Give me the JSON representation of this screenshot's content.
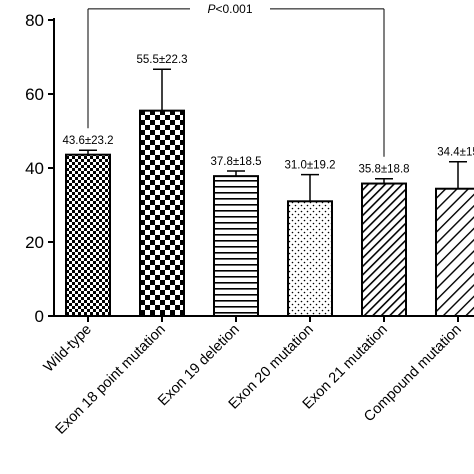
{
  "chart_data": {
    "type": "bar",
    "categories": [
      "Wild-type",
      "Exon 18 point mutation",
      "Exon 19 deletion",
      "Exon 20 mutation",
      "Exon 21 mutation",
      "Compound mutation"
    ],
    "values": [
      43.6,
      55.5,
      37.8,
      31.0,
      35.8,
      34.4
    ],
    "errors": [
      1.2,
      11.2,
      1.4,
      7.2,
      1.3,
      7.3
    ],
    "value_labels": [
      "43.6±23.2",
      "55.5±22.3",
      "37.8±18.5",
      "31.0±19.2",
      "35.8±18.8",
      "34.4±15"
    ],
    "patterns": [
      "checker-small",
      "checker-large",
      "horizontal-lines",
      "dots",
      "diagonal-lines",
      "diagonal-lines-wide"
    ],
    "ylim": [
      0,
      80
    ],
    "yticks": [
      "0",
      "20",
      "40",
      "60",
      "80"
    ],
    "xlabel": "",
    "ylabel": "",
    "title": "",
    "grid": false,
    "annotation": {
      "text_italic": "P",
      "text_rest": "<0.001",
      "from_category": "Wild-type",
      "to_category": "Exon 21 mutation",
      "level": 83
    }
  }
}
